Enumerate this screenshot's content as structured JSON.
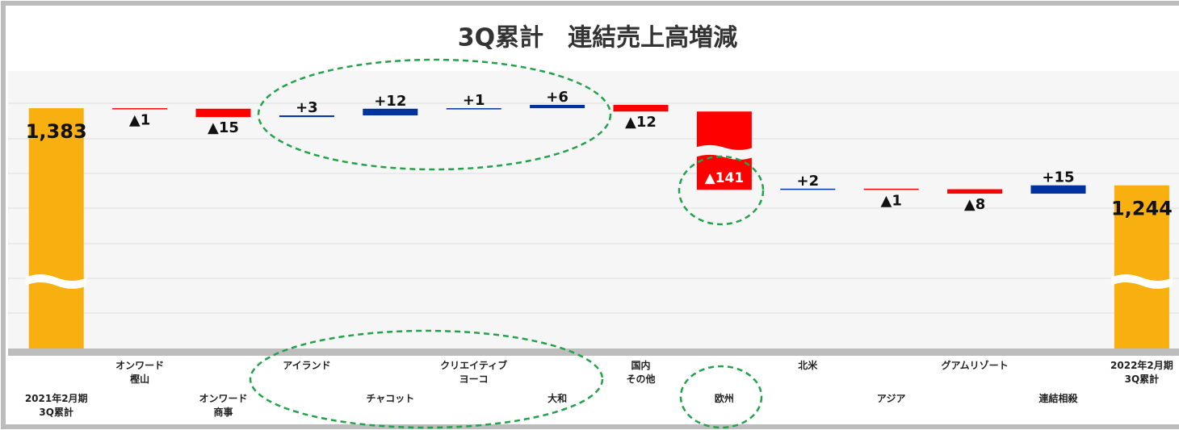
{
  "chart_data": {
    "type": "waterfall",
    "title": "3Q累計　連結売上高増減",
    "categories": [
      "2021年2月期\n3Q累計",
      "オンワード\n樫山",
      "オンワード\n商事",
      "アイランド",
      "チャコット",
      "クリエイティブ\nヨーコ",
      "大和",
      "国内\nその他",
      "欧州",
      "北米",
      "アジア",
      "グアムリゾート",
      "連結相殺",
      "2022年2月期\n3Q累計"
    ],
    "values": [
      1383,
      -1,
      -15,
      3,
      12,
      1,
      6,
      -12,
      -141,
      2,
      -1,
      -8,
      15,
      1244
    ],
    "value_labels": [
      "1,383",
      "▲1",
      "▲15",
      "+3",
      "+12",
      "+1",
      "+6",
      "▲12",
      "▲141",
      "+2",
      "▲1",
      "▲8",
      "+15",
      "1,244"
    ],
    "total_color": "#f7b00f",
    "increase_color": "#0033a0",
    "decrease_color": "#ff0000",
    "ylim": [
      950,
      1450
    ]
  }
}
